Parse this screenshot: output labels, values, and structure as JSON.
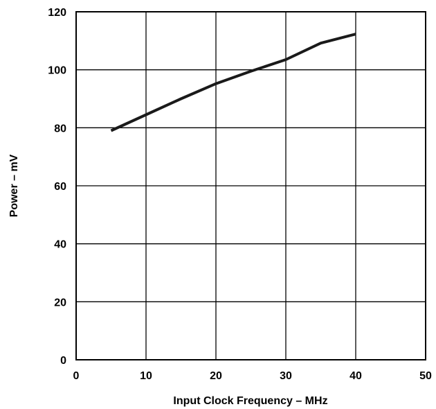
{
  "chart_data": {
    "type": "line",
    "title": "",
    "xlabel": "Input Clock Frequency – MHz",
    "ylabel": "Power – mV",
    "xlim": [
      0,
      50
    ],
    "ylim": [
      0,
      120
    ],
    "x_ticks": [
      0,
      10,
      20,
      30,
      40,
      50
    ],
    "y_ticks": [
      0,
      20,
      40,
      60,
      80,
      100,
      120
    ],
    "x_tick_labels": [
      "0",
      "10",
      "20",
      "30",
      "40",
      "50"
    ],
    "y_tick_labels": [
      "0",
      "20",
      "40",
      "60",
      "80",
      "100",
      "120"
    ],
    "grid": true,
    "legend": "none",
    "series": [
      {
        "x": [
          5,
          10,
          15,
          20,
          25,
          30,
          35,
          40
        ],
        "y": [
          79,
          84.5,
          90,
          95.2,
          99.5,
          103.5,
          109.2,
          112.3
        ]
      }
    ],
    "colors": {
      "line": "#1a1a1a",
      "grid": "#000000",
      "frame": "#000000"
    }
  }
}
